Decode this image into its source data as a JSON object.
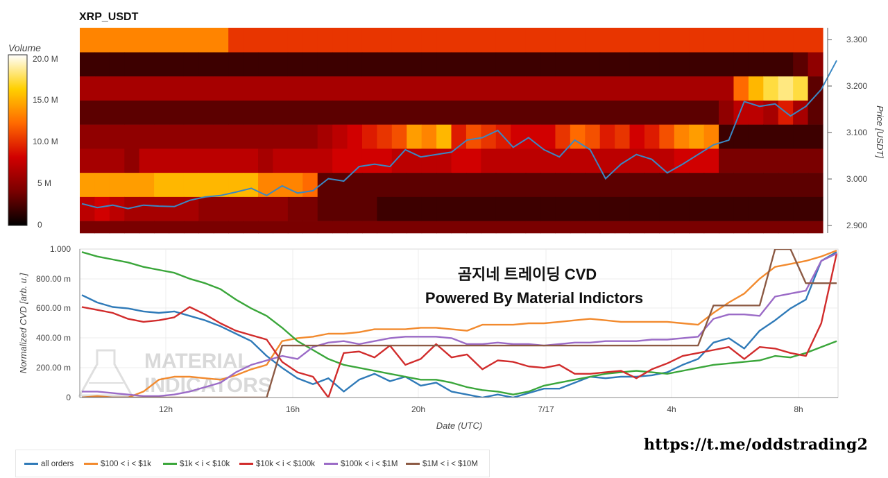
{
  "heatmap_title": "XRP_USDT",
  "colorbar": {
    "label": "Volume",
    "ticks": [
      "20.0 M",
      "15.0 M",
      "10.0 M",
      "5 M",
      "0"
    ]
  },
  "price_axis": {
    "label": "Price [USDT]",
    "ticks": [
      "3.300",
      "3.200",
      "3.100",
      "3.000",
      "2.900"
    ]
  },
  "cvd_axis": {
    "ylabel": "Normalized CVD [arb. u.]",
    "yticks": [
      "1.000",
      "800.00 m",
      "600.00 m",
      "400.00 m",
      "200.00 m",
      "0"
    ],
    "xlabel": "Date (UTC)",
    "xticks": [
      "12h",
      "16h",
      "20h",
      "7/17",
      "4h",
      "8h"
    ]
  },
  "overlay": {
    "line1": "곰지네 트레이딩 CVD",
    "line2": "Powered By Material Indictors"
  },
  "watermark": {
    "line1": "MATERIAL",
    "line2": "INDICATORS"
  },
  "url": "https://t.me/oddstrading2",
  "legend": [
    {
      "label": "all orders",
      "color": "#2f7ab8"
    },
    {
      "label": "$100 < i < $1k",
      "color": "#f28a2e"
    },
    {
      "label": "$1k < i < $10k",
      "color": "#3aa63a"
    },
    {
      "label": "$10k < i < $100k",
      "color": "#d12c2c"
    },
    {
      "label": "$100k < i < $1M",
      "color": "#9b6bc7"
    },
    {
      "label": "$1M < i < $10M",
      "color": "#8c5a44"
    }
  ],
  "chart_data": [
    {
      "type": "heatmap",
      "title": "XRP_USDT",
      "ylabel": "Price [USDT]",
      "ylim": [
        2.887,
        3.313
      ],
      "colorbar_range": [
        0,
        20
      ],
      "colorbar_unit": "M",
      "colorscale": [
        "#000000",
        "#7a0000",
        "#d10000",
        "#ff6a00",
        "#ffd000",
        "#ffffff"
      ],
      "price_bands": [
        {
          "low": 3.262,
          "high": 3.313,
          "intensity": [
            13,
            13,
            13,
            13,
            13,
            13,
            13,
            13,
            13,
            13,
            10,
            10,
            10,
            10,
            10,
            10,
            10,
            10,
            10,
            10,
            10,
            10,
            10,
            10,
            10,
            10,
            10,
            10,
            10,
            10,
            10,
            10,
            10,
            10,
            10,
            10,
            10,
            10,
            10,
            10,
            10,
            10,
            10,
            10,
            10,
            10,
            10,
            10,
            10,
            10
          ]
        },
        {
          "low": 3.212,
          "high": 3.262,
          "intensity": [
            2,
            2,
            2,
            2,
            2,
            2,
            2,
            2,
            2,
            2,
            2,
            2,
            2,
            2,
            2,
            2,
            2,
            2,
            2,
            2,
            2,
            2,
            2,
            2,
            2,
            2,
            2,
            2,
            2,
            2,
            2,
            2,
            2,
            2,
            2,
            2,
            2,
            2,
            2,
            2,
            2,
            2,
            2,
            2,
            2,
            2,
            2,
            2,
            3,
            5
          ]
        },
        {
          "low": 3.162,
          "high": 3.212,
          "intensity": [
            6,
            6,
            6,
            6,
            6,
            6,
            6,
            6,
            6,
            6,
            6,
            6,
            6,
            6,
            6,
            6,
            6,
            6,
            6,
            6,
            6,
            6,
            6,
            6,
            6,
            6,
            6,
            6,
            6,
            6,
            6,
            6,
            6,
            6,
            6,
            6,
            6,
            6,
            6,
            6,
            6,
            6,
            6,
            6,
            12,
            15,
            17,
            18,
            17,
            3
          ]
        },
        {
          "low": 3.112,
          "high": 3.162,
          "intensity": [
            3,
            3,
            3,
            3,
            3,
            3,
            3,
            3,
            3,
            3,
            3,
            3,
            3,
            3,
            3,
            3,
            3,
            3,
            3,
            3,
            3,
            3,
            3,
            3,
            3,
            3,
            3,
            3,
            3,
            3,
            3,
            3,
            3,
            3,
            3,
            3,
            3,
            3,
            3,
            3,
            3,
            3,
            3,
            5,
            7,
            7,
            6,
            9,
            6,
            3
          ]
        },
        {
          "low": 3.062,
          "high": 3.112,
          "intensity": [
            5,
            5,
            5,
            5,
            5,
            5,
            5,
            5,
            5,
            5,
            5,
            5,
            5,
            5,
            5,
            5,
            6,
            7,
            8,
            9,
            10,
            11,
            14,
            13,
            15,
            9,
            11,
            10,
            9,
            8,
            8,
            8,
            10,
            12,
            11,
            9,
            10,
            8,
            9,
            11,
            13,
            14,
            13,
            2,
            2,
            2,
            2,
            2,
            2,
            2
          ]
        },
        {
          "low": 3.012,
          "high": 3.062,
          "intensity": [
            6,
            6,
            6,
            5,
            7,
            7,
            7,
            7,
            7,
            7,
            7,
            7,
            6,
            7,
            7,
            7,
            7,
            8,
            8,
            8,
            8,
            7,
            7,
            7,
            7,
            8,
            8,
            7,
            7,
            7,
            7,
            7,
            7,
            7,
            7,
            7,
            7,
            7,
            7,
            7,
            8,
            8,
            8,
            4,
            4,
            4,
            4,
            4,
            4,
            4
          ]
        },
        {
          "low": 2.962,
          "high": 3.012,
          "intensity": [
            14,
            14,
            14,
            14,
            14,
            15,
            15,
            15,
            15,
            15,
            15,
            15,
            13,
            13,
            13,
            12,
            3,
            3,
            3,
            3,
            3,
            3,
            3,
            3,
            3,
            3,
            3,
            3,
            3,
            3,
            3,
            3,
            3,
            3,
            3,
            3,
            3,
            3,
            3,
            3,
            3,
            3,
            3,
            3,
            3,
            3,
            3,
            3,
            3,
            3
          ]
        },
        {
          "low": 2.912,
          "high": 2.962,
          "intensity": [
            7,
            8,
            7,
            6,
            6,
            6,
            6,
            6,
            5,
            5,
            5,
            5,
            5,
            5,
            4,
            4,
            3,
            3,
            3,
            3,
            2,
            2,
            2,
            2,
            2,
            2,
            2,
            2,
            2,
            2,
            2,
            2,
            2,
            2,
            2,
            2,
            2,
            2,
            2,
            2,
            2,
            2,
            2,
            2,
            2,
            2,
            2,
            2,
            2,
            2
          ]
        },
        {
          "low": 2.887,
          "high": 2.912,
          "intensity": [
            4,
            4,
            4,
            4,
            4,
            4,
            4,
            4,
            4,
            4,
            4,
            4,
            4,
            4,
            4,
            4,
            4,
            4,
            4,
            4,
            4,
            4,
            4,
            4,
            4,
            4,
            4,
            4,
            4,
            4,
            4,
            4,
            4,
            4,
            4,
            4,
            4,
            4,
            4,
            4,
            4,
            4,
            4,
            4,
            4,
            4,
            4,
            4,
            4,
            4
          ]
        }
      ],
      "price_series": [
        2.948,
        2.94,
        2.945,
        2.938,
        2.945,
        2.943,
        2.942,
        2.955,
        2.962,
        2.965,
        2.972,
        2.98,
        2.965,
        2.985,
        2.97,
        2.975,
        3.0,
        2.995,
        3.025,
        3.03,
        3.025,
        3.06,
        3.045,
        3.05,
        3.055,
        3.08,
        3.085,
        3.1,
        3.065,
        3.085,
        3.06,
        3.045,
        3.08,
        3.06,
        3.0,
        3.03,
        3.05,
        3.04,
        3.012,
        3.03,
        3.05,
        3.07,
        3.08,
        3.16,
        3.15,
        3.155,
        3.13,
        3.15,
        3.185,
        3.245
      ]
    },
    {
      "type": "line",
      "xlabel": "Date (UTC)",
      "ylabel": "Normalized CVD [arb. u.]",
      "ylim": [
        0,
        1
      ],
      "xticks": [
        "12h",
        "16h",
        "20h",
        "7/17",
        "4h",
        "8h"
      ],
      "series": [
        {
          "name": "all orders",
          "values": [
            0.69,
            0.64,
            0.61,
            0.6,
            0.58,
            0.57,
            0.58,
            0.55,
            0.52,
            0.48,
            0.43,
            0.38,
            0.28,
            0.2,
            0.13,
            0.09,
            0.13,
            0.04,
            0.12,
            0.16,
            0.11,
            0.14,
            0.08,
            0.1,
            0.04,
            0.02,
            0.0,
            0.02,
            0.0,
            0.03,
            0.06,
            0.06,
            0.1,
            0.14,
            0.13,
            0.14,
            0.14,
            0.15,
            0.17,
            0.22,
            0.26,
            0.37,
            0.4,
            0.33,
            0.45,
            0.52,
            0.6,
            0.66,
            0.92,
            0.98
          ]
        },
        {
          "name": "$100 < i < $1k",
          "values": [
            0.0,
            0.01,
            0.0,
            0.0,
            0.04,
            0.12,
            0.14,
            0.14,
            0.13,
            0.12,
            0.15,
            0.19,
            0.22,
            0.38,
            0.4,
            0.41,
            0.43,
            0.43,
            0.44,
            0.46,
            0.46,
            0.46,
            0.47,
            0.47,
            0.46,
            0.45,
            0.49,
            0.49,
            0.49,
            0.5,
            0.5,
            0.51,
            0.52,
            0.53,
            0.52,
            0.51,
            0.51,
            0.51,
            0.51,
            0.5,
            0.49,
            0.57,
            0.64,
            0.7,
            0.8,
            0.88,
            0.9,
            0.92,
            0.95,
            0.99
          ]
        },
        {
          "name": "$1k < i < $10k",
          "values": [
            0.98,
            0.95,
            0.93,
            0.91,
            0.88,
            0.86,
            0.84,
            0.8,
            0.77,
            0.73,
            0.66,
            0.6,
            0.55,
            0.47,
            0.38,
            0.32,
            0.26,
            0.22,
            0.2,
            0.18,
            0.16,
            0.14,
            0.12,
            0.12,
            0.1,
            0.07,
            0.05,
            0.04,
            0.02,
            0.04,
            0.08,
            0.1,
            0.12,
            0.14,
            0.16,
            0.17,
            0.18,
            0.17,
            0.16,
            0.18,
            0.2,
            0.22,
            0.23,
            0.24,
            0.25,
            0.28,
            0.27,
            0.3,
            0.34,
            0.38
          ]
        },
        {
          "name": "$10k < i < $100k",
          "values": [
            0.61,
            0.59,
            0.57,
            0.53,
            0.51,
            0.52,
            0.54,
            0.61,
            0.56,
            0.5,
            0.45,
            0.42,
            0.39,
            0.24,
            0.17,
            0.14,
            0.0,
            0.3,
            0.31,
            0.27,
            0.35,
            0.22,
            0.26,
            0.36,
            0.27,
            0.29,
            0.19,
            0.25,
            0.24,
            0.21,
            0.2,
            0.22,
            0.16,
            0.16,
            0.17,
            0.18,
            0.13,
            0.19,
            0.23,
            0.28,
            0.3,
            0.32,
            0.34,
            0.26,
            0.34,
            0.33,
            0.3,
            0.28,
            0.5,
            0.97
          ]
        },
        {
          "name": "$100k < i < $1M",
          "values": [
            0.04,
            0.04,
            0.03,
            0.02,
            0.01,
            0.01,
            0.02,
            0.04,
            0.07,
            0.1,
            0.17,
            0.22,
            0.25,
            0.28,
            0.26,
            0.34,
            0.37,
            0.38,
            0.36,
            0.38,
            0.4,
            0.41,
            0.41,
            0.41,
            0.4,
            0.36,
            0.36,
            0.37,
            0.36,
            0.36,
            0.35,
            0.36,
            0.37,
            0.37,
            0.38,
            0.38,
            0.38,
            0.39,
            0.39,
            0.4,
            0.41,
            0.53,
            0.56,
            0.56,
            0.55,
            0.68,
            0.7,
            0.72,
            0.92,
            0.97
          ]
        },
        {
          "name": "$1M < i < $10M",
          "values": [
            0.0,
            0.0,
            0.0,
            0.0,
            0.0,
            0.0,
            0.0,
            0.0,
            0.0,
            0.0,
            0.0,
            0.0,
            0.0,
            0.35,
            0.35,
            0.35,
            0.35,
            0.35,
            0.35,
            0.35,
            0.35,
            0.35,
            0.35,
            0.35,
            0.35,
            0.35,
            0.35,
            0.35,
            0.35,
            0.35,
            0.35,
            0.35,
            0.35,
            0.35,
            0.35,
            0.35,
            0.35,
            0.35,
            0.35,
            0.35,
            0.35,
            0.62,
            0.62,
            0.62,
            0.62,
            1.0,
            1.0,
            0.77,
            0.77,
            0.77
          ]
        }
      ]
    }
  ]
}
